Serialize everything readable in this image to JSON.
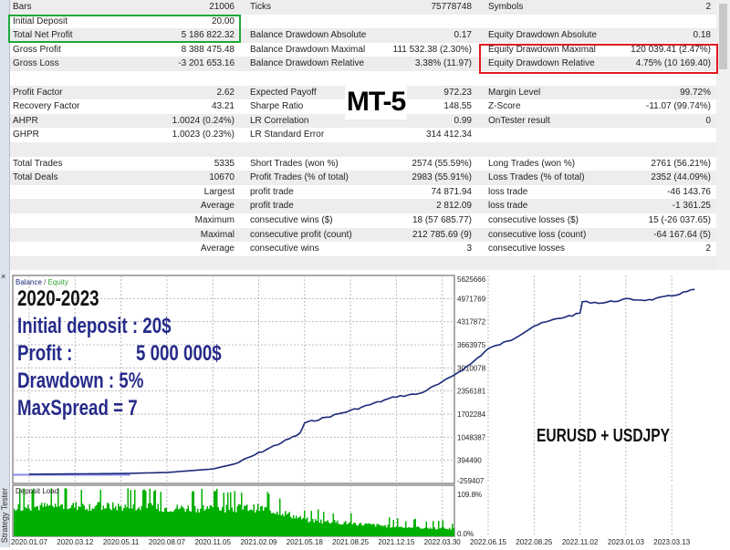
{
  "side_tab": {
    "label": "Strategy Tester",
    "close": "×"
  },
  "report": {
    "rows": [
      [
        "Bars",
        "21006",
        "Ticks",
        "75778748",
        "Symbols",
        "2"
      ],
      [
        "Initial Deposit",
        "20.00",
        "",
        "",
        "",
        ""
      ],
      [
        "Total Net Profit",
        "5 186 822.32",
        "Balance Drawdown Absolute",
        "0.17",
        "Equity Drawdown Absolute",
        "0.18"
      ],
      [
        "Gross Profit",
        "8 388 475.48",
        "Balance Drawdown Maximal",
        "111 532.38 (2.30%)",
        "Equity Drawdown Maximal",
        "120 039.41 (2.47%)"
      ],
      [
        "Gross Loss",
        "-3 201 653.16",
        "Balance Drawdown Relative",
        "3.38% (11.97)",
        "Equity Drawdown Relative",
        "4.75% (10 169.40)"
      ],
      [
        "",
        "",
        "",
        "",
        "",
        ""
      ],
      [
        "Profit Factor",
        "2.62",
        "Expected Payoff",
        "972.23",
        "Margin Level",
        "99.72%"
      ],
      [
        "Recovery Factor",
        "43.21",
        "Sharpe Ratio",
        "148.55",
        "Z-Score",
        "-11.07 (99.74%)"
      ],
      [
        "AHPR",
        "1.0024 (0.24%)",
        "LR Correlation",
        "0.99",
        "OnTester result",
        "0"
      ],
      [
        "GHPR",
        "1.0023 (0.23%)",
        "LR Standard Error",
        "314 412.34",
        "",
        ""
      ],
      [
        "",
        "",
        "",
        "",
        "",
        ""
      ],
      [
        "Total Trades",
        "5335",
        "Short Trades (won %)",
        "2574 (55.59%)",
        "Long Trades (won %)",
        "2761 (56.21%)"
      ],
      [
        "Total Deals",
        "10670",
        "Profit Trades (% of total)",
        "2983 (55.91%)",
        "Loss Trades (% of total)",
        "2352 (44.09%)"
      ],
      [
        "",
        "Largest",
        "profit trade",
        "74 871.94",
        "loss trade",
        "-46 143.76"
      ],
      [
        "",
        "Average",
        "profit trade",
        "2 812.09",
        "loss trade",
        "-1 361.25"
      ],
      [
        "",
        "Maximum",
        "consecutive wins ($)",
        "18 (57 685.77)",
        "consecutive losses ($)",
        "15 (-26 037.65)"
      ],
      [
        "",
        "Maximal",
        "consecutive profit (count)",
        "212 785.69 (9)",
        "consecutive loss (count)",
        "-64 167.64 (5)"
      ],
      [
        "",
        "Average",
        "consecutive wins",
        "3",
        "consecutive losses",
        "2"
      ],
      [
        "",
        "",
        "",
        "",
        "",
        ""
      ]
    ]
  },
  "annotations": {
    "mt5": "MT-5",
    "period": "2020-2023",
    "initial_deposit": "Initial deposit : 20$",
    "profit_label": "Profit :",
    "profit_value": "5 000 000$",
    "drawdown": "Drawdown : 5%",
    "maxspread": "MaxSpread = 7",
    "symbols": "EURUSD  + USDJPY"
  },
  "colors": {
    "balance": "#1b2a7a",
    "equity": "#2e9e2e",
    "deposit_load": "#00b000",
    "annot_blue": "#262b8a",
    "green_box": "#1fa83a",
    "red_box": "#e0191e"
  },
  "chart_data": [
    {
      "type": "line",
      "legend": {
        "balance": "Balance",
        "sep": " / ",
        "equity": "Equity"
      },
      "y_ticks": [
        "5625666",
        "4971769",
        "4317872",
        "3663975",
        "3010078",
        "2356181",
        "1702284",
        "1048387",
        "394490",
        "-259407"
      ],
      "ylim": [
        -259407,
        5625666
      ],
      "x_ticks": [
        "2020.01.07",
        "2020.03.12",
        "2020.05.11",
        "2020.08.07",
        "2020.11.05",
        "2021.02.09",
        "2021.05.18",
        "2021.08.25",
        "2021.12.15",
        "2022.03.30",
        "2022.06.15",
        "2022.08.25",
        "2022.11.02",
        "2023.01.03",
        "2023.03.13"
      ],
      "series": [
        {
          "name": "Balance",
          "points": [
            [
              0,
              20
            ],
            [
              2,
              20000
            ],
            [
              3,
              50000
            ],
            [
              4,
              150000
            ],
            [
              4.5,
              300000
            ],
            [
              5,
              600000
            ],
            [
              5.5,
              900000
            ],
            [
              5.9,
              1150000
            ],
            [
              6,
              1450000
            ],
            [
              6.3,
              1550000
            ],
            [
              7,
              1800000
            ],
            [
              7.5,
              2000000
            ],
            [
              8,
              2200000
            ],
            [
              8.5,
              2280000
            ],
            [
              9,
              2600000
            ],
            [
              9.6,
              3100000
            ],
            [
              10,
              3550000
            ],
            [
              10.5,
              3800000
            ],
            [
              11,
              4200000
            ],
            [
              11.5,
              4400000
            ],
            [
              12,
              4550000
            ],
            [
              12.05,
              4880000
            ],
            [
              12.5,
              4850000
            ],
            [
              13,
              4950000
            ],
            [
              13.5,
              4930000
            ],
            [
              14,
              5050000
            ],
            [
              14.5,
              5230000
            ]
          ]
        }
      ]
    },
    {
      "type": "bar",
      "title": "Deposit Load",
      "y_ticks": [
        "109.8%",
        "0.0%"
      ],
      "ylim": [
        0,
        109.8
      ],
      "profile_percent": [
        [
          0,
          68
        ],
        [
          1,
          70
        ],
        [
          2,
          68
        ],
        [
          3,
          65
        ],
        [
          4,
          65
        ],
        [
          5,
          65
        ],
        [
          5.5,
          55
        ],
        [
          6,
          38
        ],
        [
          7,
          30
        ],
        [
          8,
          22
        ],
        [
          9,
          18
        ],
        [
          10,
          14
        ],
        [
          11,
          12
        ],
        [
          12,
          10
        ],
        [
          13,
          9
        ],
        [
          14,
          9
        ],
        [
          14.5,
          9
        ]
      ]
    }
  ]
}
